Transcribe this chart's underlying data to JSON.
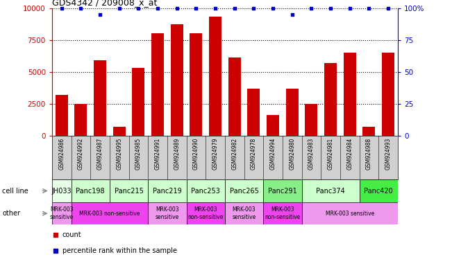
{
  "title": "GDS4342 / 209008_x_at",
  "samples": [
    "GSM924986",
    "GSM924992",
    "GSM924987",
    "GSM924995",
    "GSM924985",
    "GSM924991",
    "GSM924989",
    "GSM924990",
    "GSM924979",
    "GSM924982",
    "GSM924978",
    "GSM924994",
    "GSM924980",
    "GSM924983",
    "GSM924981",
    "GSM924984",
    "GSM924988",
    "GSM924993"
  ],
  "counts": [
    3200,
    2500,
    5900,
    700,
    5300,
    8000,
    8700,
    8000,
    9300,
    6100,
    3700,
    1600,
    3700,
    2500,
    5700,
    6500,
    700,
    6500
  ],
  "percentiles": [
    100,
    100,
    95,
    100,
    100,
    100,
    100,
    100,
    100,
    100,
    100,
    100,
    95,
    100,
    100,
    100,
    100,
    100
  ],
  "cell_lines": [
    {
      "label": "JH033",
      "start": 0,
      "end": 1,
      "color": "#e8ffe8"
    },
    {
      "label": "Panc198",
      "start": 1,
      "end": 3,
      "color": "#ccffcc"
    },
    {
      "label": "Panc215",
      "start": 3,
      "end": 5,
      "color": "#ccffcc"
    },
    {
      "label": "Panc219",
      "start": 5,
      "end": 7,
      "color": "#ccffcc"
    },
    {
      "label": "Panc253",
      "start": 7,
      "end": 9,
      "color": "#ccffcc"
    },
    {
      "label": "Panc265",
      "start": 9,
      "end": 11,
      "color": "#ccffcc"
    },
    {
      "label": "Panc291",
      "start": 11,
      "end": 13,
      "color": "#88ee88"
    },
    {
      "label": "Panc374",
      "start": 13,
      "end": 16,
      "color": "#ccffcc"
    },
    {
      "label": "Panc420",
      "start": 16,
      "end": 18,
      "color": "#44ee44"
    }
  ],
  "other_rows": [
    {
      "label": "MRK-003\nsensitive",
      "start": 0,
      "end": 1,
      "color": "#ee99ee"
    },
    {
      "label": "MRK-003 non-sensitive",
      "start": 1,
      "end": 5,
      "color": "#ee44ee"
    },
    {
      "label": "MRK-003\nsensitive",
      "start": 5,
      "end": 7,
      "color": "#ee99ee"
    },
    {
      "label": "MRK-003\nnon-sensitive",
      "start": 7,
      "end": 9,
      "color": "#ee44ee"
    },
    {
      "label": "MRK-003\nsensitive",
      "start": 9,
      "end": 11,
      "color": "#ee99ee"
    },
    {
      "label": "MRK-003\nnon-sensitive",
      "start": 11,
      "end": 13,
      "color": "#ee44ee"
    },
    {
      "label": "MRK-003 sensitive",
      "start": 13,
      "end": 18,
      "color": "#ee99ee"
    }
  ],
  "ylim": [
    0,
    10000
  ],
  "yticks": [
    0,
    2500,
    5000,
    7500,
    10000
  ],
  "ytick_labels_left": [
    "0",
    "2500",
    "5000",
    "7500",
    "10000"
  ],
  "ytick_labels_right": [
    "0",
    "25",
    "50",
    "75",
    "100%"
  ],
  "bar_color": "#cc0000",
  "dot_color": "#0000cc",
  "tick_color_left": "#cc0000",
  "tick_color_right": "#0000cc",
  "sample_bg_color": "#d0d0d0",
  "label_fontsize": 7,
  "tick_fontsize": 7.5,
  "sample_fontsize": 5.5
}
